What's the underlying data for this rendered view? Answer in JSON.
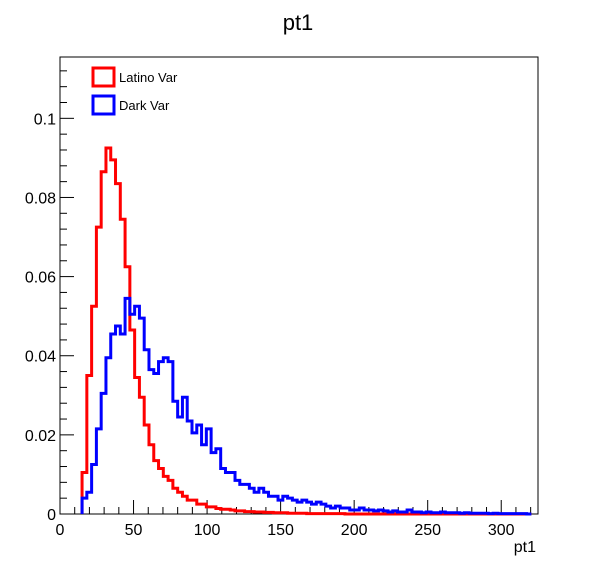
{
  "chart_data": {
    "type": "step-histogram",
    "title": "pt1",
    "xlabel": "pt1",
    "ylabel": "",
    "xlim": [
      0,
      325
    ],
    "ylim": [
      0,
      0.1155
    ],
    "xticks": [
      {
        "value": 0,
        "label": "0"
      },
      {
        "value": 50,
        "label": "50"
      },
      {
        "value": 100,
        "label": "100"
      },
      {
        "value": 150,
        "label": "150"
      },
      {
        "value": 200,
        "label": "200"
      },
      {
        "value": 250,
        "label": "250"
      },
      {
        "value": 300,
        "label": "300"
      }
    ],
    "yticks": [
      {
        "value": 0,
        "label": "0"
      },
      {
        "value": 0.02,
        "label": "0.02"
      },
      {
        "value": 0.04,
        "label": "0.04"
      },
      {
        "value": 0.06,
        "label": "0.06"
      },
      {
        "value": 0.08,
        "label": "0.08"
      },
      {
        "value": 0.1,
        "label": "0.1"
      }
    ],
    "bin_start": 15,
    "bin_width": 3.25,
    "legend_position": "top-left",
    "series": [
      {
        "name": "Latino Var",
        "color": "#ff0000",
        "values": [
          0.0105,
          0.035,
          0.0525,
          0.0725,
          0.0865,
          0.0925,
          0.0895,
          0.0835,
          0.0745,
          0.0625,
          0.0465,
          0.0345,
          0.0295,
          0.0225,
          0.0175,
          0.0135,
          0.0115,
          0.0095,
          0.0085,
          0.0065,
          0.0055,
          0.0045,
          0.0035,
          0.0035,
          0.0025,
          0.0025,
          0.0018,
          0.0018,
          0.0014,
          0.0012,
          0.0012,
          0.001,
          0.0008,
          0.0008,
          0.0006,
          0.0006,
          0.0005,
          0.0005,
          0.0004,
          0.0004,
          0.0003,
          0.0003,
          0.0003,
          0.0002,
          0.0002,
          0.0002,
          0.0002,
          0.0001,
          0.0001,
          0.0001,
          0.0001,
          0.0001,
          0.0001,
          0.0001,
          0.0001,
          0,
          0,
          0,
          0,
          0,
          0,
          0,
          0,
          0,
          0,
          0,
          0,
          0,
          0,
          0,
          0,
          0,
          0,
          0,
          0,
          0,
          0,
          0,
          0,
          0,
          0,
          0,
          0,
          0,
          0,
          0,
          0,
          0,
          0,
          0,
          0,
          0,
          0,
          0
        ]
      },
      {
        "name": "Dark Var",
        "color": "#0000ff",
        "values": [
          0.004,
          0.0055,
          0.0125,
          0.0215,
          0.0305,
          0.0395,
          0.0455,
          0.0475,
          0.0455,
          0.0545,
          0.0505,
          0.0525,
          0.0495,
          0.0415,
          0.0365,
          0.0355,
          0.0385,
          0.0395,
          0.0385,
          0.0285,
          0.0245,
          0.0295,
          0.0235,
          0.0205,
          0.0225,
          0.0175,
          0.0215,
          0.0155,
          0.0165,
          0.0115,
          0.0105,
          0.0105,
          0.0085,
          0.0075,
          0.0075,
          0.0065,
          0.0055,
          0.0065,
          0.0055,
          0.0045,
          0.0045,
          0.0035,
          0.0045,
          0.004,
          0.0035,
          0.003,
          0.0035,
          0.003,
          0.0025,
          0.003,
          0.0025,
          0.002,
          0.0015,
          0.002,
          0.0015,
          0.0015,
          0.001,
          0.001,
          0.0015,
          0.001,
          0.001,
          0.0008,
          0.001,
          0.0008,
          0.0005,
          0.0008,
          0.0005,
          0.0005,
          0.001,
          0.0005,
          0.0005,
          0.0003,
          0.0005,
          0.0003,
          0.0003,
          0.0005,
          0.0003,
          0.0003,
          0.0003,
          0.0002,
          0.0003,
          0.0002,
          0.0002,
          0.0002,
          0.0002,
          0.0001,
          0.0002,
          0.0001,
          0.0001,
          0.0001,
          0.0001,
          0.0001,
          0.0001,
          0
        ]
      }
    ]
  }
}
